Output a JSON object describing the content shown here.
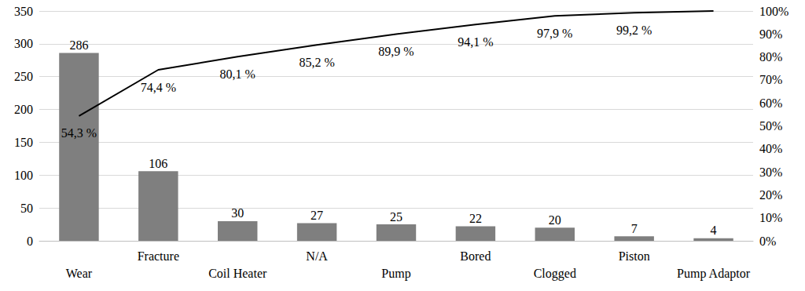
{
  "chart_data": {
    "type": "bar",
    "categories": [
      "Wear",
      "Fracture",
      "Coil Heater",
      "N/A",
      "Pump",
      "Bored",
      "Clogged",
      "Piston",
      "Pump Adaptor"
    ],
    "series": [
      {
        "type": "bar",
        "color": "#7f7f7f",
        "values": [
          286,
          106,
          30,
          27,
          25,
          22,
          20,
          7,
          4
        ]
      },
      {
        "type": "line",
        "axis": "y2",
        "color": "#000000",
        "marker": "none",
        "values": [
          54.3,
          74.4,
          80.1,
          85.2,
          89.9,
          94.1,
          97.9,
          99.2,
          100
        ],
        "value_labels": [
          "54,3 %",
          "74,4 %",
          "80,1 %",
          "85,2 %",
          "89,9 %",
          "94,1 %",
          "97,9 %",
          "99,2 %",
          null
        ]
      }
    ],
    "ylim": [
      0,
      350
    ],
    "yticks": [
      0,
      50,
      100,
      150,
      200,
      250,
      300,
      350
    ],
    "y2lim": [
      0,
      100
    ],
    "y2ticks": [
      {
        "value": 0,
        "label": "0%"
      },
      {
        "value": 10,
        "label": "10%"
      },
      {
        "value": 20,
        "label": "20%"
      },
      {
        "value": 30,
        "label": "30%"
      },
      {
        "value": 40,
        "label": "40%"
      },
      {
        "value": 50,
        "label": "50%"
      },
      {
        "value": 60,
        "label": "60%"
      },
      {
        "value": 70,
        "label": "70%"
      },
      {
        "value": 80,
        "label": "80%"
      },
      {
        "value": 90,
        "label": "90%"
      },
      {
        "value": 100,
        "label": "100%"
      }
    ],
    "grid": true,
    "data_labels": true
  }
}
